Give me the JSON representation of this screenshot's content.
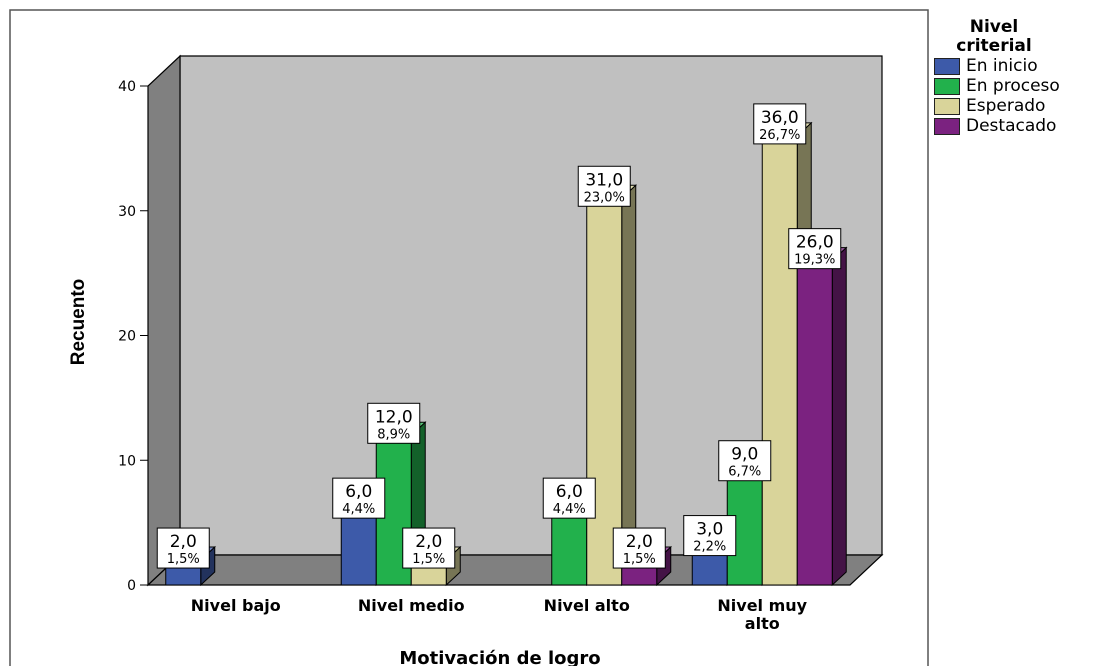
{
  "chart_data": {
    "type": "bar",
    "xlabel": "Motivación de logro",
    "ylabel": "Recuento",
    "ylim": [
      0,
      40
    ],
    "yticks": [
      0,
      10,
      20,
      30,
      40
    ],
    "categories": [
      "Nivel bajo",
      "Nivel medio",
      "Nivel alto",
      "Nivel muy alto"
    ],
    "legend_title": "Nivel criterial",
    "legend_placement": "right",
    "series": [
      {
        "name": "En inicio",
        "color": "#3d5aa9",
        "values": [
          2,
          6,
          0,
          3
        ],
        "labels": [
          [
            "2,0",
            "1,5%"
          ],
          [
            "6,0",
            "4,4%"
          ],
          null,
          [
            "3,0",
            "2,2%"
          ]
        ]
      },
      {
        "name": "En proceso",
        "color": "#22b14c",
        "values": [
          0,
          12,
          6,
          9
        ],
        "labels": [
          null,
          [
            "12,0",
            "8,9%"
          ],
          [
            "6,0",
            "4,4%"
          ],
          [
            "9,0",
            "6,7%"
          ]
        ]
      },
      {
        "name": "Esperado",
        "color": "#d9d49a",
        "values": [
          0,
          2,
          31,
          36
        ],
        "labels": [
          null,
          [
            "2,0",
            "1,5%"
          ],
          [
            "31,0",
            "23,0%"
          ],
          [
            "36,0",
            "26,7%"
          ]
        ]
      },
      {
        "name": "Destacado",
        "color": "#7b2280",
        "values": [
          0,
          0,
          2,
          26
        ],
        "labels": [
          null,
          null,
          [
            "2,0",
            "1,5%"
          ],
          [
            "26,0",
            "19,3%"
          ]
        ]
      }
    ]
  }
}
